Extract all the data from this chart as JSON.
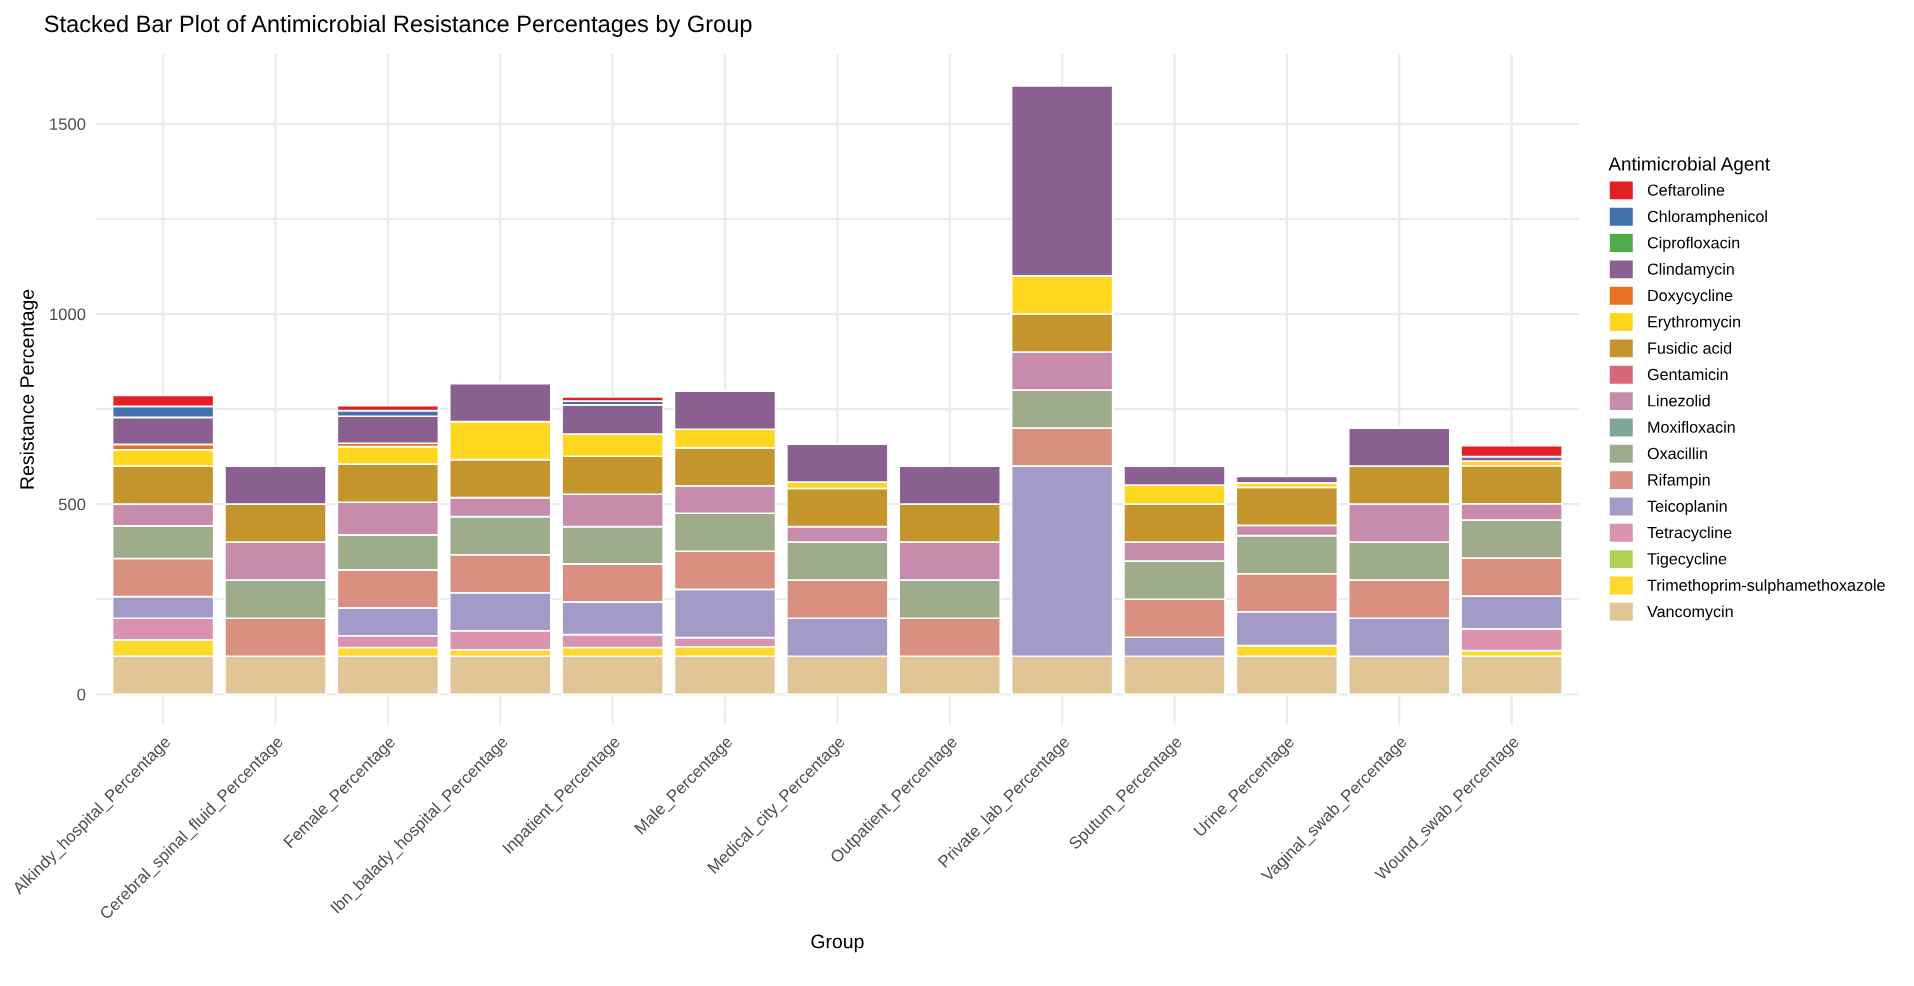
{
  "chart_data": {
    "type": "bar",
    "stacked": true,
    "title": "Stacked Bar Plot of Antimicrobial Resistance Percentages by Group",
    "xlabel": "Group",
    "ylabel": "Resistance Percentage",
    "legend_title": "Antimicrobial Agent",
    "categories": [
      "Alkindy_hospital_Percentage",
      "Cerebral_spinal_fluid_Percentage",
      "Female_Percentage",
      "Ibn_balady_hospital_Percentage",
      "Inpatient_Percentage",
      "Male_Percentage",
      "Medical_city_Percentage",
      "Outpatient_Percentage",
      "Private_lab_Percentage",
      "Sputum_Percentage",
      "Urine_Percentage",
      "Vaginal_swab_Percentage",
      "Wound_swab_Percentage"
    ],
    "series": [
      {
        "name": "Vancomycin",
        "color": "#e2c596",
        "values": [
          100,
          100,
          100,
          100,
          100,
          100,
          100,
          100,
          100,
          100,
          100,
          100,
          100
        ]
      },
      {
        "name": "Trimethoprim-sulphamethoxazole",
        "color": "#fed82a",
        "values": [
          43,
          null,
          23,
          17,
          23,
          25,
          null,
          null,
          null,
          null,
          28,
          null,
          15
        ]
      },
      {
        "name": "Tigecycline",
        "color": "#b0d252",
        "values": [
          null,
          null,
          null,
          null,
          null,
          null,
          null,
          null,
          null,
          null,
          null,
          null,
          null
        ]
      },
      {
        "name": "Tetracycline",
        "color": "#da92ae",
        "values": [
          57,
          null,
          31,
          50,
          34,
          24,
          null,
          null,
          null,
          null,
          null,
          null,
          57
        ]
      },
      {
        "name": "Teicoplanin",
        "color": "#a39ac7",
        "values": [
          57,
          null,
          73,
          100,
          86,
          127,
          100,
          null,
          500,
          50,
          89,
          100,
          86
        ]
      },
      {
        "name": "Rifampin",
        "color": "#d99080",
        "values": [
          100,
          100,
          100,
          100,
          100,
          100,
          100,
          100,
          100,
          100,
          100,
          100,
          100
        ]
      },
      {
        "name": "Oxacillin",
        "color": "#9eac8c",
        "values": [
          86,
          100,
          92,
          100,
          98,
          100,
          100,
          100,
          100,
          100,
          100,
          100,
          100
        ]
      },
      {
        "name": "Moxifloxacin",
        "color": "#7fa89a",
        "values": [
          null,
          null,
          null,
          null,
          null,
          null,
          null,
          null,
          null,
          null,
          null,
          null,
          null
        ]
      },
      {
        "name": "Linezolid",
        "color": "#c78bac",
        "values": [
          57,
          100,
          86,
          50,
          85,
          72,
          41,
          100,
          100,
          50,
          27,
          100,
          43
        ]
      },
      {
        "name": "Gentamicin",
        "color": "#d8677a",
        "values": [
          null,
          null,
          null,
          null,
          null,
          null,
          null,
          null,
          null,
          null,
          null,
          null,
          null
        ]
      },
      {
        "name": "Fusidic acid",
        "color": "#c4942d",
        "values": [
          100,
          100,
          100,
          100,
          100,
          100,
          100,
          100,
          100,
          100,
          100,
          100,
          100
        ]
      },
      {
        "name": "Erythromycin",
        "color": "#fed71e",
        "values": [
          43,
          null,
          46,
          100,
          58,
          49,
          17,
          null,
          100,
          50,
          12,
          null,
          12
        ]
      },
      {
        "name": "Doxycycline",
        "color": "#e87223",
        "values": [
          14,
          null,
          9,
          null,
          null,
          null,
          null,
          null,
          null,
          null,
          null,
          null,
          null
        ]
      },
      {
        "name": "Clindamycin",
        "color": "#8a6090",
        "values": [
          71,
          100,
          71,
          100,
          77,
          100,
          100,
          100,
          500,
          50,
          17,
          100,
          12
        ]
      },
      {
        "name": "Ciprofloxacin",
        "color": "#4dab4a",
        "values": [
          null,
          null,
          null,
          null,
          null,
          null,
          null,
          null,
          null,
          null,
          null,
          null,
          null
        ]
      },
      {
        "name": "Chloramphenicol",
        "color": "#4172ad",
        "values": [
          29,
          null,
          15,
          null,
          10,
          null,
          null,
          null,
          null,
          null,
          null,
          null,
          null
        ]
      },
      {
        "name": "Ceftaroline",
        "color": "#e31e24",
        "values": [
          29,
          null,
          13,
          null,
          11,
          null,
          null,
          null,
          null,
          null,
          null,
          null,
          29
        ]
      }
    ],
    "ylim": [
      -80,
      1683
    ],
    "yticks": [
      0,
      {
        "value": 250,
        "label": null
      },
      500,
      {
        "value": 750,
        "label": null
      },
      1000,
      {
        "value": 1250,
        "label": null
      },
      1500
    ],
    "grid": true,
    "legend": "right"
  }
}
